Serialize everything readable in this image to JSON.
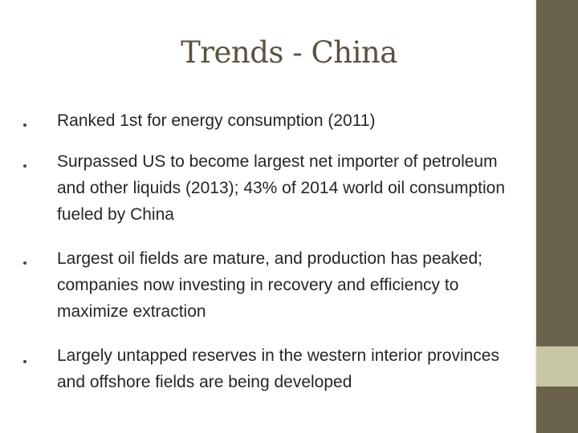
{
  "slide": {
    "title": "Trends - China",
    "bullets": [
      {
        "text": "Ranked 1st for energy consumption (2011)"
      },
      {
        "text": "Surpassed US to become largest net importer of petroleum and other liquids (2013); 43% of 2014 world oil consumption fueled by China"
      },
      {
        "text": "Largest oil fields are mature, and production has peaked; companies now investing in recovery and efficiency to maximize extraction"
      },
      {
        "text": "Largely untapped reserves in the western interior provinces and offshore fields are being developed"
      }
    ]
  },
  "colors": {
    "background": "#ffffff",
    "sidebar": "#6b624c",
    "sidebar_accent": "#c7c7a6",
    "title": "#5a5240",
    "body_text": "#262626"
  }
}
